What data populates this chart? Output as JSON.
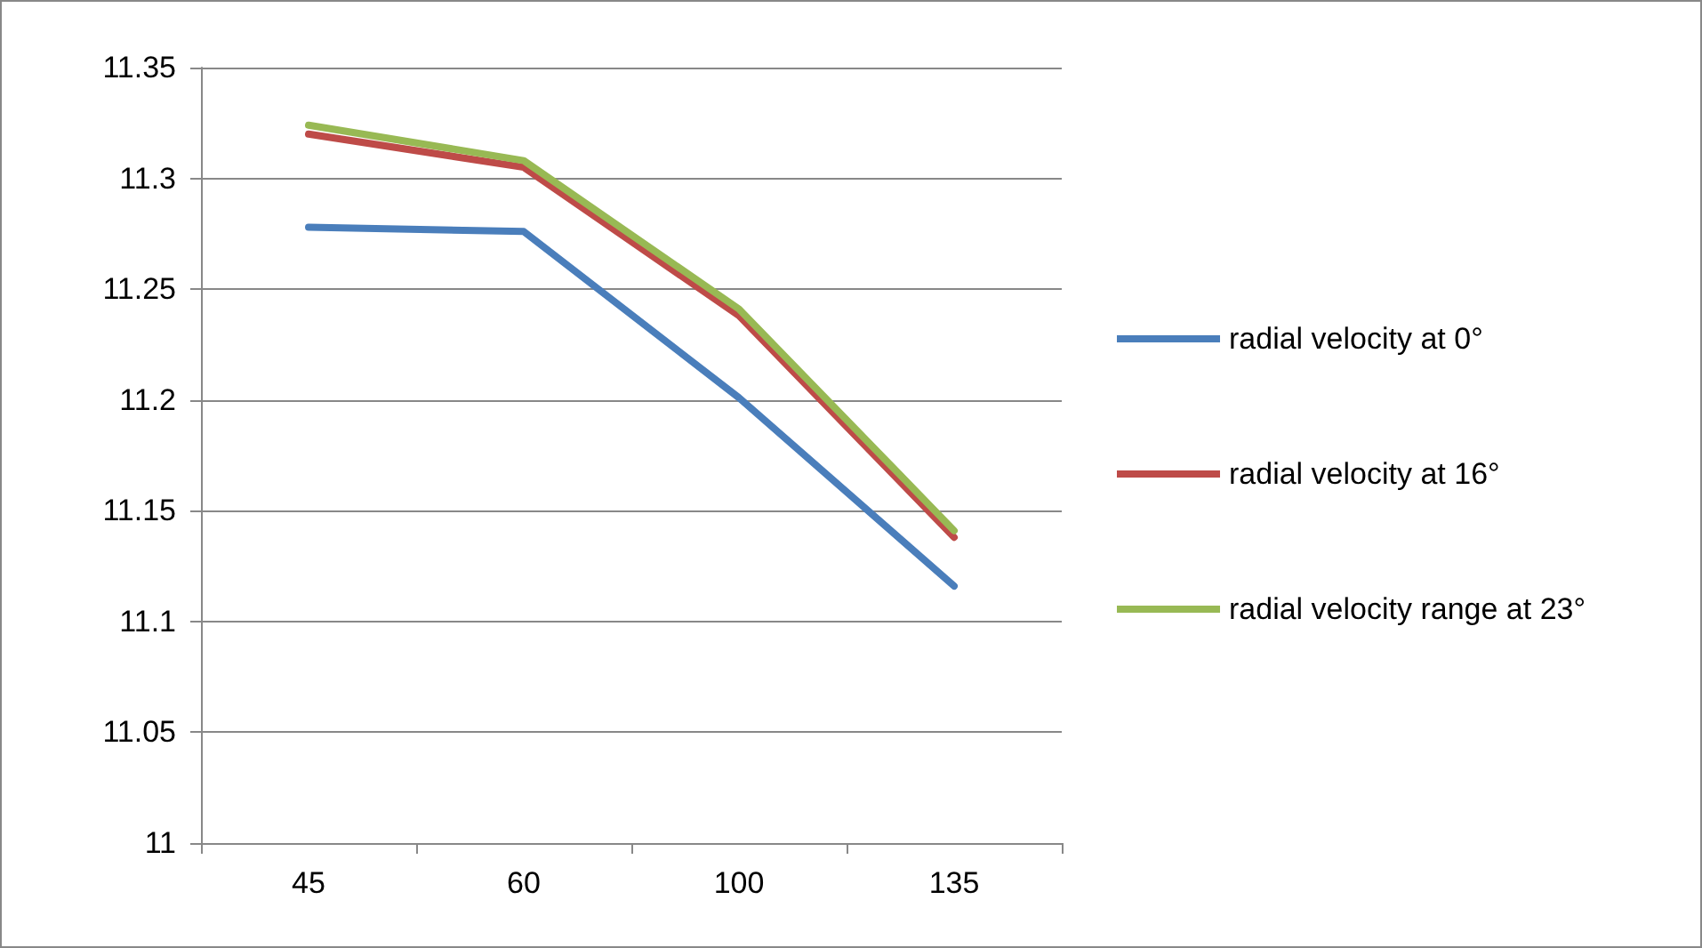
{
  "chart_data": {
    "type": "line",
    "categories": [
      "45",
      "60",
      "100",
      "135"
    ],
    "series": [
      {
        "name": "radial velocity at 0°",
        "color": "#4a7ebb",
        "values": [
          11.278,
          11.276,
          11.201,
          11.116
        ]
      },
      {
        "name": "radial velocity at 16°",
        "color": "#be4b48",
        "values": [
          11.32,
          11.305,
          11.238,
          11.138
        ]
      },
      {
        "name": "radial velocity range at 23°",
        "color": "#98b954",
        "values": [
          11.324,
          11.308,
          11.241,
          11.141
        ]
      }
    ],
    "ylim": [
      11,
      11.35
    ],
    "yticks": [
      11,
      11.05,
      11.1,
      11.15,
      11.2,
      11.25,
      11.3,
      11.35
    ],
    "grid": "y",
    "legend": "right",
    "marker": "none",
    "line_style": "solid"
  }
}
